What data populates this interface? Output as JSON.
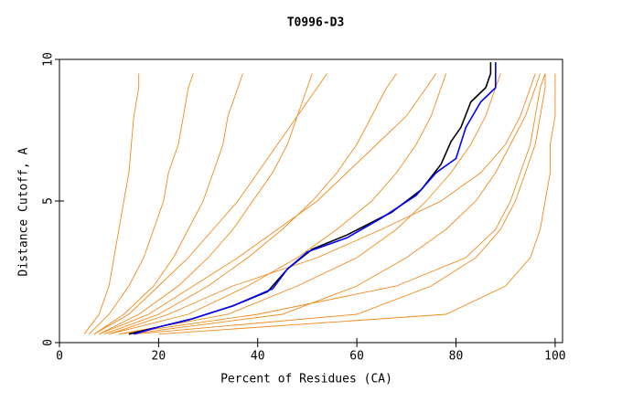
{
  "chart_data": {
    "type": "line",
    "title": "T0996-D3",
    "x_label": "Percent of Residues (CA)",
    "y_label": "Distance Cutoff, A",
    "xlim": [
      0,
      101.5
    ],
    "ylim": [
      0,
      10
    ],
    "xticks": [
      0,
      20,
      40,
      60,
      80,
      100
    ],
    "yticks": [
      0,
      5,
      10
    ],
    "series": [
      {
        "color": "#f08a1c",
        "x": [
          5,
          8,
          10,
          11,
          12,
          13,
          14,
          14.5,
          15,
          16,
          16
        ],
        "values": [
          0.3,
          1,
          2,
          3,
          4,
          5,
          6,
          7,
          8,
          9,
          9.5
        ]
      },
      {
        "color": "#f08a1c",
        "x": [
          6,
          10,
          14,
          17,
          19,
          21,
          22,
          24,
          25,
          26,
          27
        ],
        "values": [
          0.3,
          1,
          2,
          3,
          4,
          5,
          6,
          7,
          8,
          9,
          9.5
        ]
      },
      {
        "color": "#f08a1c",
        "x": [
          7,
          13,
          19,
          23,
          26,
          29,
          31,
          33,
          34,
          36,
          37
        ],
        "values": [
          0.3,
          1,
          2,
          3,
          4,
          5,
          6,
          7,
          8,
          9,
          9.5
        ]
      },
      {
        "color": "#f08a1c",
        "x": [
          7,
          14,
          20,
          26,
          31,
          36,
          40,
          44,
          48,
          52,
          54
        ],
        "values": [
          0.3,
          1,
          2,
          3,
          4,
          5,
          6,
          7,
          8,
          9,
          9.5
        ]
      },
      {
        "color": "#f08a1c",
        "x": [
          8,
          16,
          24,
          30,
          35,
          39,
          43,
          46,
          48,
          50,
          51
        ],
        "values": [
          0.3,
          1,
          2,
          3,
          4,
          5,
          6,
          7,
          8,
          9,
          9.5
        ]
      },
      {
        "color": "#f08a1c",
        "x": [
          8,
          18,
          27,
          36,
          44,
          52,
          58,
          64,
          70,
          74,
          76
        ],
        "values": [
          0.3,
          1,
          2,
          3,
          4,
          5,
          6,
          7,
          8,
          9,
          9.5
        ]
      },
      {
        "color": "#f08a1c",
        "x": [
          9,
          20,
          30,
          38,
          45,
          51,
          56,
          60,
          63,
          66,
          68
        ],
        "values": [
          0.3,
          1,
          2,
          3,
          4,
          5,
          6,
          7,
          8,
          9,
          9.5
        ]
      },
      {
        "color": "#f08a1c",
        "x": [
          10,
          22,
          35,
          52,
          65,
          77,
          85,
          90,
          93,
          95,
          96
        ],
        "values": [
          0.3,
          1,
          2,
          3,
          4,
          5,
          6,
          7,
          8,
          9,
          9.5
        ]
      },
      {
        "color": "#f08a1c",
        "x": [
          10,
          26,
          38,
          48,
          56,
          63,
          68,
          72,
          75,
          77,
          78
        ],
        "values": [
          0.3,
          1,
          2,
          3,
          4,
          5,
          6,
          7,
          8,
          9,
          9.5
        ]
      },
      {
        "color": "#f08a1c",
        "x": [
          12,
          34,
          48,
          60,
          68,
          74,
          79,
          83,
          86,
          88,
          89
        ],
        "values": [
          0.3,
          1,
          2,
          3,
          4,
          5,
          6,
          7,
          8,
          9,
          9.5
        ]
      },
      {
        "color": "#f08a1c",
        "x": [
          12,
          40,
          68,
          82,
          88,
          91,
          93,
          95,
          96,
          97,
          98
        ],
        "values": [
          0.3,
          1,
          2,
          3,
          4,
          5,
          6,
          7,
          8,
          9,
          9.5
        ]
      },
      {
        "color": "#f08a1c",
        "x": [
          14,
          45,
          60,
          70,
          78,
          84,
          88,
          91,
          94,
          96,
          97
        ],
        "values": [
          0.3,
          1,
          2,
          3,
          4,
          5,
          6,
          7,
          8,
          9,
          9.5
        ]
      },
      {
        "color": "#f08a1c",
        "x": [
          15,
          60,
          75,
          84,
          89,
          92,
          94,
          96,
          97,
          98,
          98
        ],
        "values": [
          0.3,
          1,
          2,
          3,
          4,
          5,
          6,
          7,
          8,
          9,
          9.5
        ]
      },
      {
        "color": "#f08a1c",
        "x": [
          20,
          78,
          90,
          95,
          97,
          98,
          99,
          99,
          100,
          100,
          100
        ],
        "values": [
          0.3,
          1,
          2,
          3,
          4,
          5,
          6,
          7,
          8,
          9,
          9.5
        ]
      },
      {
        "color": "#000000",
        "x": [
          14,
          20,
          27,
          35,
          42,
          46,
          51,
          58,
          67,
          73,
          77,
          79,
          81,
          83,
          86,
          87,
          87
        ],
        "values": [
          0.3,
          0.55,
          0.85,
          1.3,
          1.8,
          2.6,
          3.3,
          3.8,
          4.6,
          5.4,
          6.3,
          7.1,
          7.6,
          8.5,
          9.0,
          9.5,
          9.9
        ]
      },
      {
        "color": "#0000ff",
        "x": [
          15,
          20,
          26,
          35,
          43,
          46,
          50,
          58,
          65,
          72,
          76,
          80,
          82,
          85,
          88,
          88,
          88
        ],
        "values": [
          0.3,
          0.55,
          0.8,
          1.3,
          1.9,
          2.6,
          3.2,
          3.7,
          4.4,
          5.2,
          6.0,
          6.5,
          7.6,
          8.5,
          9.0,
          9.5,
          9.9
        ]
      }
    ]
  }
}
